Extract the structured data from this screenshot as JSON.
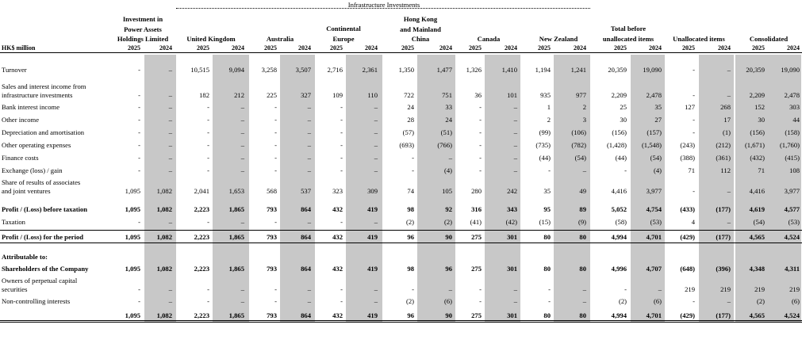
{
  "header": {
    "unit": "HK$ million",
    "infra_banner": "Infrastructure Investments",
    "groups": [
      {
        "lines": [
          "Investment in",
          "Power Assets",
          "Holdings Limited"
        ]
      },
      {
        "lines": [
          "United Kingdom"
        ]
      },
      {
        "lines": [
          "Australia"
        ]
      },
      {
        "lines": [
          "Continental",
          "Europe"
        ]
      },
      {
        "lines": [
          "Hong Kong",
          "and Mainland",
          "China"
        ]
      },
      {
        "lines": [
          "Canada"
        ]
      },
      {
        "lines": [
          "New Zealand"
        ]
      },
      {
        "lines": [
          "Total before",
          "unallocated items"
        ]
      },
      {
        "lines": [
          "Unallocated items"
        ]
      },
      {
        "lines": [
          "Consolidated"
        ]
      }
    ],
    "years": [
      "2025",
      "2024"
    ]
  },
  "rows": [
    {
      "label": [
        "Turnover"
      ],
      "values": [
        "-",
        "–",
        "10,515",
        "9,094",
        "3,258",
        "3,507",
        "2,716",
        "2,361",
        "1,350",
        "1,477",
        "1,326",
        "1,410",
        "1,194",
        "1,241",
        "20,359",
        "19,090",
        "-",
        "–",
        "20,359",
        "19,090"
      ]
    },
    {
      "label": [
        "Sales and interest income from",
        "infrastructure investments"
      ],
      "values": [
        "-",
        "–",
        "182",
        "212",
        "225",
        "327",
        "109",
        "110",
        "722",
        "751",
        "36",
        "101",
        "935",
        "977",
        "2,209",
        "2,478",
        "-",
        "–",
        "2,209",
        "2,478"
      ]
    },
    {
      "label": [
        "Bank interest income"
      ],
      "values": [
        "-",
        "–",
        "-",
        "–",
        "-",
        "–",
        "-",
        "–",
        "24",
        "33",
        "-",
        "–",
        "1",
        "2",
        "25",
        "35",
        "127",
        "268",
        "152",
        "303"
      ]
    },
    {
      "label": [
        "Other income"
      ],
      "values": [
        "-",
        "–",
        "-",
        "–",
        "-",
        "–",
        "-",
        "–",
        "28",
        "24",
        "-",
        "–",
        "2",
        "3",
        "30",
        "27",
        "-",
        "17",
        "30",
        "44"
      ]
    },
    {
      "label": [
        "Depreciation and amortisation"
      ],
      "values": [
        "-",
        "–",
        "-",
        "–",
        "-",
        "–",
        "-",
        "–",
        "(57)",
        "(51)",
        "-",
        "–",
        "(99)",
        "(106)",
        "(156)",
        "(157)",
        "-",
        "(1)",
        "(156)",
        "(158)"
      ]
    },
    {
      "label": [
        "Other operating expenses"
      ],
      "values": [
        "-",
        "–",
        "-",
        "–",
        "-",
        "–",
        "-",
        "–",
        "(693)",
        "(766)",
        "-",
        "–",
        "(735)",
        "(782)",
        "(1,428)",
        "(1,548)",
        "(243)",
        "(212)",
        "(1,671)",
        "(1,760)"
      ]
    },
    {
      "label": [
        "Finance costs"
      ],
      "values": [
        "-",
        "–",
        "-",
        "–",
        "-",
        "–",
        "-",
        "–",
        "-",
        "–",
        "-",
        "–",
        "(44)",
        "(54)",
        "(44)",
        "(54)",
        "(388)",
        "(361)",
        "(432)",
        "(415)"
      ]
    },
    {
      "label": [
        "Exchange (loss) / gain"
      ],
      "values": [
        "-",
        "–",
        "-",
        "–",
        "-",
        "–",
        "-",
        "–",
        "-",
        "(4)",
        "-",
        "–",
        "-",
        "–",
        "-",
        "(4)",
        "71",
        "112",
        "71",
        "108"
      ]
    },
    {
      "label": [
        "Share of results of associates",
        "and joint ventures"
      ],
      "values": [
        "1,095",
        "1,082",
        "2,041",
        "1,653",
        "568",
        "537",
        "323",
        "309",
        "74",
        "105",
        "280",
        "242",
        "35",
        "49",
        "4,416",
        "3,977",
        "-",
        "–",
        "4,416",
        "3,977"
      ]
    },
    {
      "label": [
        "Profit / (Loss) before taxation"
      ],
      "values": [
        "1,095",
        "1,082",
        "2,223",
        "1,865",
        "793",
        "864",
        "432",
        "419",
        "98",
        "92",
        "316",
        "343",
        "95",
        "89",
        "5,052",
        "4,754",
        "(433)",
        "(177)",
        "4,619",
        "4,577"
      ]
    },
    {
      "label": [
        "Taxation"
      ],
      "values": [
        "-",
        "–",
        "-",
        "–",
        "-",
        "–",
        "-",
        "–",
        "(2)",
        "(2)",
        "(41)",
        "(42)",
        "(15)",
        "(9)",
        "(58)",
        "(53)",
        "4",
        "–",
        "(54)",
        "(53)"
      ]
    },
    {
      "label": [
        "Profit / (Loss) for the period"
      ],
      "values": [
        "1,095",
        "1,082",
        "2,223",
        "1,865",
        "793",
        "864",
        "432",
        "419",
        "96",
        "90",
        "275",
        "301",
        "80",
        "80",
        "4,994",
        "4,701",
        "(429)",
        "(177)",
        "4,565",
        "4,524"
      ]
    },
    {
      "label": [
        "Attributable to:"
      ],
      "values": []
    },
    {
      "label": [
        "Shareholders of the Company"
      ],
      "values": [
        "1,095",
        "1,082",
        "2,223",
        "1,865",
        "793",
        "864",
        "432",
        "419",
        "98",
        "96",
        "275",
        "301",
        "80",
        "80",
        "4,996",
        "4,707",
        "(648)",
        "(396)",
        "4,348",
        "4,311"
      ]
    },
    {
      "label": [
        "Owners of perpetual capital",
        "securities"
      ],
      "values": [
        "-",
        "–",
        "-",
        "–",
        "-",
        "–",
        "-",
        "–",
        "-",
        "–",
        "-",
        "–",
        "-",
        "–",
        "-",
        "–",
        "219",
        "219",
        "219",
        "219"
      ]
    },
    {
      "label": [
        "Non-controlling interests"
      ],
      "values": [
        "-",
        "–",
        "-",
        "–",
        "-",
        "–",
        "-",
        "–",
        "(2)",
        "(6)",
        "-",
        "–",
        "-",
        "–",
        "(2)",
        "(6)",
        "-",
        "–",
        "(2)",
        "(6)"
      ]
    },
    {
      "label": [],
      "values": [
        "1,095",
        "1,082",
        "2,223",
        "1,865",
        "793",
        "864",
        "432",
        "419",
        "96",
        "90",
        "275",
        "301",
        "80",
        "80",
        "4,994",
        "4,701",
        "(429)",
        "(177)",
        "4,565",
        "4,524"
      ]
    }
  ]
}
